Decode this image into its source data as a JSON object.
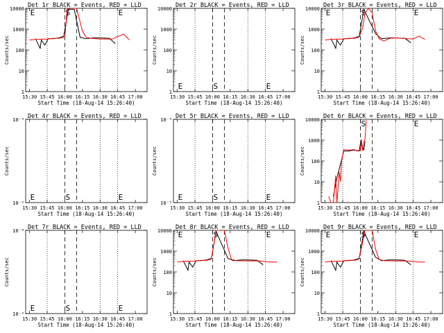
{
  "chart_data": [
    {
      "type": "line",
      "detector": "1r",
      "title": "Det 1r BLACK = Events, RED = LLD",
      "xlabel": "Start Time (18-Aug-14 15:26:40)",
      "ylabel": "Counts/sec",
      "xticks": [
        "15:30",
        "15:45",
        "16:00",
        "16:15",
        "16:30",
        "16:45",
        "17:00"
      ],
      "yscale": "log",
      "ylim": [
        1,
        10000
      ],
      "ytick_labels": [
        "1",
        "10",
        "100",
        "1000",
        "10000"
      ],
      "markers": [
        {
          "label": "E",
          "time": "15:30"
        },
        {
          "label": "S",
          "time": "16:00"
        },
        {
          "label": "E",
          "time": "16:45"
        }
      ],
      "series": [
        {
          "color": "#000000",
          "x": [
            "15:35",
            "15:39",
            "15:40",
            "15:43",
            "15:46",
            "15:50",
            "15:55",
            "15:59",
            "16:03",
            "16:08",
            "16:13",
            "16:18",
            "16:25",
            "16:30",
            "16:38",
            "16:43"
          ],
          "values": [
            350,
            120,
            300,
            170,
            350,
            350,
            380,
            450,
            9000,
            9000,
            400,
            350,
            380,
            380,
            360,
            200
          ]
        },
        {
          "color": "#ff0000",
          "x": [
            "15:30",
            "15:35",
            "15:40",
            "15:45",
            "15:50",
            "15:55",
            "16:00",
            "16:02",
            "16:05",
            "16:10",
            "16:15",
            "16:18",
            "16:22",
            "16:30",
            "16:40",
            "16:50",
            "16:55"
          ],
          "values": [
            300,
            320,
            330,
            330,
            360,
            360,
            420,
            9000,
            10000,
            10000,
            800,
            420,
            360,
            340,
            330,
            580,
            300
          ]
        }
      ]
    },
    {
      "type": "line",
      "detector": "2r",
      "title": "Det 2r BLACK = Events, RED = LLD",
      "xlabel": "Start Time (18-Aug-14 15:26:40)",
      "ylabel": "Counts/sec",
      "xticks": [
        "15:30",
        "15:45",
        "16:00",
        "16:15",
        "16:30",
        "16:45",
        "17:00"
      ],
      "yscale": "log",
      "ylim": [
        1,
        10000
      ],
      "ytick_labels": [
        "1",
        "10",
        "100",
        "1000",
        "10000"
      ],
      "markers": [
        {
          "label": "E",
          "time": "15:30"
        },
        {
          "label": "S",
          "time": "16:00"
        },
        {
          "label": "E",
          "time": "16:45"
        }
      ],
      "series": []
    },
    {
      "type": "line",
      "detector": "3r",
      "title": "Det 3r BLACK = Events, RED = LLD",
      "xlabel": "Start Time (18-Aug-14 15:26:40)",
      "ylabel": "Counts/sec",
      "xticks": [
        "15:30",
        "15:45",
        "16:00",
        "16:15",
        "16:30",
        "16:45",
        "17:00"
      ],
      "yscale": "log",
      "ylim": [
        1,
        10000
      ],
      "ytick_labels": [
        "1",
        "10",
        "100",
        "1000",
        "10000"
      ],
      "markers": [
        {
          "label": "E",
          "time": "15:30"
        },
        {
          "label": "S",
          "time": "16:00"
        },
        {
          "label": "E",
          "time": "16:45"
        }
      ],
      "series": [
        {
          "color": "#000000",
          "x": [
            "15:35",
            "15:39",
            "15:40",
            "15:43",
            "15:46",
            "15:50",
            "15:55",
            "15:59",
            "16:03",
            "16:13",
            "16:18",
            "16:25",
            "16:30",
            "16:38",
            "16:43"
          ],
          "values": [
            350,
            120,
            300,
            170,
            350,
            350,
            380,
            450,
            9000,
            600,
            350,
            380,
            380,
            360,
            220
          ]
        },
        {
          "color": "#ff0000",
          "x": [
            "15:30",
            "15:35",
            "15:40",
            "15:45",
            "15:50",
            "15:55",
            "15:59",
            "16:02",
            "16:04",
            "16:07",
            "16:10",
            "16:13",
            "16:16",
            "16:20",
            "16:25",
            "16:30",
            "16:40",
            "16:45",
            "16:50",
            "16:55"
          ],
          "values": [
            300,
            320,
            330,
            330,
            360,
            360,
            420,
            1200,
            6000,
            10000,
            6000,
            800,
            350,
            270,
            360,
            380,
            350,
            340,
            460,
            320
          ]
        }
      ]
    },
    {
      "type": "line",
      "detector": "4r",
      "title": "Det 4r BLACK = Events, RED = LLD",
      "xlabel": "Start Time (18-Aug-14 15:26:40)",
      "ylabel": "Counts/sec",
      "xticks": [
        "15:30",
        "15:45",
        "16:00",
        "16:15",
        "16:30",
        "16:45",
        "17:00"
      ],
      "yscale": "log",
      "ylim": [
        1e-05,
        0.0001
      ],
      "ytick_labels": [
        "10⁻⁵",
        "10⁻⁴"
      ],
      "markers": [
        {
          "label": "E",
          "time": "15:30"
        },
        {
          "label": "S",
          "time": "16:00"
        },
        {
          "label": "E",
          "time": "16:45"
        }
      ],
      "series": []
    },
    {
      "type": "line",
      "detector": "5r",
      "title": "Det 5r BLACK = Events, RED = LLD",
      "xlabel": "Start Time (18-Aug-14 15:26:40)",
      "ylabel": "Counts/sec",
      "xticks": [
        "15:30",
        "15:45",
        "16:00",
        "16:15",
        "16:30",
        "16:45",
        "17:00"
      ],
      "yscale": "log",
      "ylim": [
        1e-05,
        0.0001
      ],
      "ytick_labels": [
        "10⁻⁵",
        "10⁻⁴"
      ],
      "markers": [
        {
          "label": "E",
          "time": "15:30"
        },
        {
          "label": "S",
          "time": "16:00"
        },
        {
          "label": "E",
          "time": "16:45"
        }
      ],
      "series": []
    },
    {
      "type": "line",
      "detector": "6r",
      "title": "Det 6r BLACK = Events, RED = LLD",
      "xlabel": "Start Time (18-Aug-14 15:26:40)",
      "ylabel": "Counts/sec",
      "xticks": [
        "15:30",
        "15:45",
        "16:00",
        "16:15",
        "16:30",
        "16:45",
        "17:00"
      ],
      "yscale": "log",
      "ylim": [
        1,
        10000
      ],
      "ytick_labels": [
        "1",
        "10",
        "100",
        "1000",
        "10000"
      ],
      "markers": [
        {
          "label": "S",
          "time": "16:00"
        },
        {
          "label": "E",
          "time": "16:45"
        }
      ],
      "series": [
        {
          "color": "#000000",
          "x": [
            "15:37",
            "15:40",
            "15:43",
            "15:46",
            "15:50",
            "15:53",
            "15:55",
            "15:59",
            "16:00",
            "16:03",
            "16:04"
          ],
          "values": [
            2,
            15,
            70,
            300,
            300,
            320,
            330,
            300,
            700,
            350,
            900
          ]
        },
        {
          "color": "#ff0000",
          "x": [
            "15:33",
            "15:35",
            "15:37",
            "15:39",
            "15:40",
            "15:41",
            "15:42",
            "15:43",
            "15:44",
            "15:46",
            "15:50",
            "15:55",
            "15:57",
            "16:00",
            "16:01",
            "16:02",
            "16:03",
            "16:04",
            "16:05"
          ],
          "values": [
            2,
            1,
            1,
            20,
            1,
            5,
            30,
            10,
            100,
            350,
            330,
            350,
            300,
            340,
            1100,
            300,
            800,
            1200,
            9000
          ]
        }
      ]
    },
    {
      "type": "line",
      "detector": "7r",
      "title": "Det 7r BLACK = Events, RED = LLD",
      "xlabel": "Start Time (18-Aug-14 15:26:40)",
      "ylabel": "Counts/sec",
      "xticks": [
        "15:30",
        "15:45",
        "16:00",
        "16:15",
        "16:30",
        "16:45",
        "17:00"
      ],
      "yscale": "log",
      "ylim": [
        1e-05,
        0.0001
      ],
      "ytick_labels": [
        "10⁻⁵",
        "10⁻⁴"
      ],
      "markers": [
        {
          "label": "E",
          "time": "15:30"
        },
        {
          "label": "S",
          "time": "16:00"
        },
        {
          "label": "E",
          "time": "16:45"
        }
      ],
      "series": []
    },
    {
      "type": "line",
      "detector": "8r",
      "title": "Det 8r BLACK = Events, RED = LLD",
      "xlabel": "Start Time (18-Aug-14 15:26:40)",
      "ylabel": "Counts/sec",
      "xticks": [
        "15:30",
        "15:45",
        "16:00",
        "16:15",
        "16:30",
        "16:45",
        "17:00"
      ],
      "yscale": "log",
      "ylim": [
        1,
        10000
      ],
      "ytick_labels": [
        "1",
        "10",
        "100",
        "1000",
        "10000"
      ],
      "markers": [
        {
          "label": "E",
          "time": "15:30"
        },
        {
          "label": "S",
          "time": "16:00"
        },
        {
          "label": "E",
          "time": "16:45"
        }
      ],
      "series": [
        {
          "color": "#000000",
          "x": [
            "15:35",
            "15:39",
            "15:40",
            "15:43",
            "15:46",
            "15:50",
            "15:55",
            "15:59",
            "16:03",
            "16:13",
            "16:18",
            "16:25",
            "16:30",
            "16:38",
            "16:43"
          ],
          "values": [
            350,
            120,
            300,
            170,
            350,
            350,
            380,
            450,
            9000,
            450,
            350,
            380,
            380,
            360,
            220
          ]
        },
        {
          "color": "#ff0000",
          "x": [
            "15:30",
            "15:35",
            "15:40",
            "15:45",
            "15:50",
            "15:55",
            "15:59",
            "16:01",
            "16:03",
            "16:06",
            "16:10",
            "16:13",
            "16:16",
            "16:20",
            "16:30",
            "16:40",
            "16:50",
            "16:55"
          ],
          "values": [
            300,
            320,
            330,
            330,
            360,
            360,
            420,
            2000,
            10000,
            10000,
            10000,
            1500,
            400,
            350,
            340,
            340,
            300,
            300
          ]
        }
      ]
    },
    {
      "type": "line",
      "detector": "9r",
      "title": "Det 9r BLACK = Events, RED = LLD",
      "xlabel": "Start Time (18-Aug-14 15:26:40)",
      "ylabel": "Counts/sec",
      "xticks": [
        "15:30",
        "15:45",
        "16:00",
        "16:15",
        "16:30",
        "16:45",
        "17:00"
      ],
      "yscale": "log",
      "ylim": [
        1,
        10000
      ],
      "ytick_labels": [
        "1",
        "10",
        "100",
        "1000",
        "10000"
      ],
      "markers": [
        {
          "label": "E",
          "time": "15:30"
        },
        {
          "label": "S",
          "time": "16:00"
        },
        {
          "label": "E",
          "time": "16:45"
        }
      ],
      "series": [
        {
          "color": "#000000",
          "x": [
            "15:35",
            "15:39",
            "15:40",
            "15:43",
            "15:46",
            "15:50",
            "15:55",
            "15:59",
            "16:03",
            "16:13",
            "16:18",
            "16:25",
            "16:30",
            "16:38",
            "16:43"
          ],
          "values": [
            350,
            120,
            300,
            170,
            350,
            350,
            380,
            450,
            9000,
            500,
            350,
            380,
            380,
            360,
            220
          ]
        },
        {
          "color": "#ff0000",
          "x": [
            "15:30",
            "15:35",
            "15:40",
            "15:45",
            "15:50",
            "15:55",
            "15:59",
            "16:01",
            "16:04",
            "16:07",
            "16:10",
            "16:13",
            "16:16",
            "16:20",
            "16:30",
            "16:40",
            "16:50",
            "16:55"
          ],
          "values": [
            300,
            320,
            330,
            330,
            360,
            360,
            420,
            1500,
            10000,
            10000,
            10000,
            1200,
            400,
            350,
            340,
            340,
            300,
            300
          ]
        }
      ]
    }
  ]
}
